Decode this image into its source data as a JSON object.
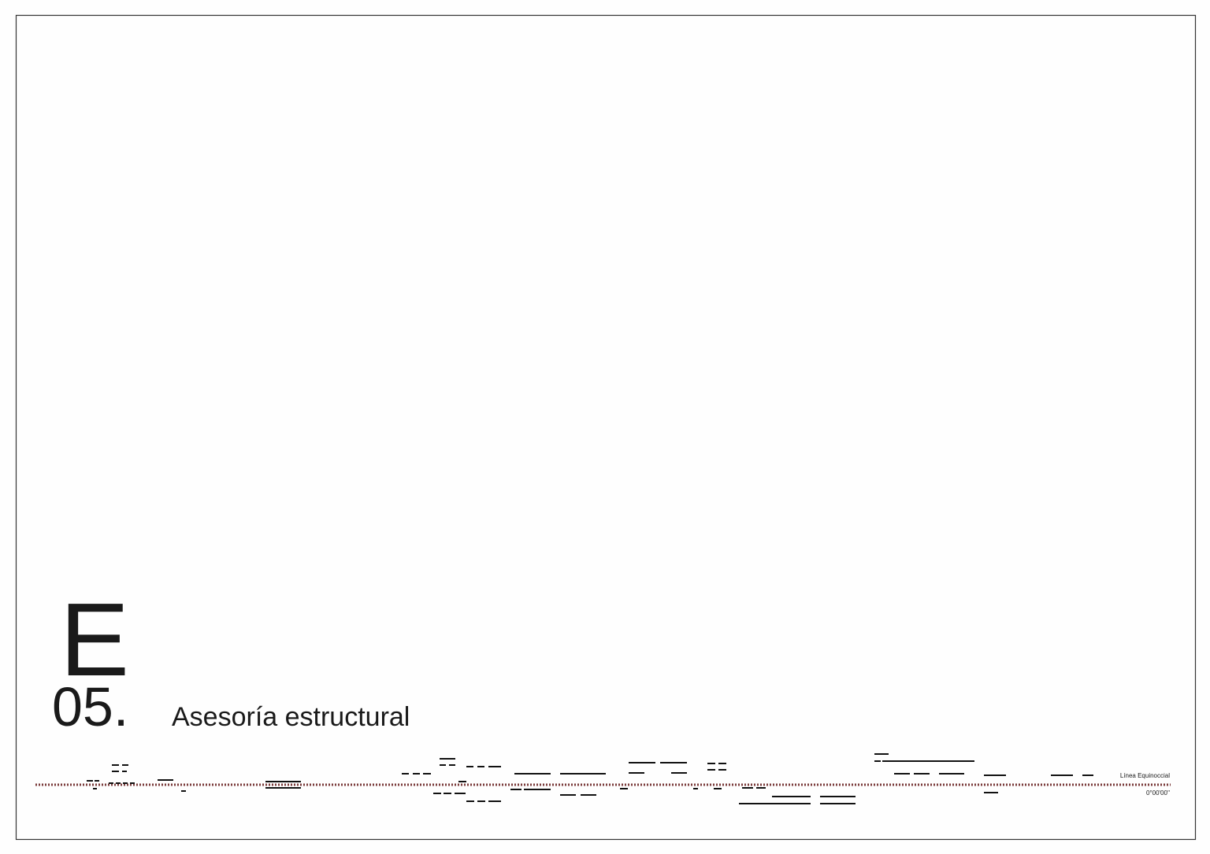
{
  "section": {
    "letter": "E",
    "number": "05.",
    "title": "Asesoría estructural"
  },
  "equator": {
    "label": "Línea Equinoccial",
    "coordinate": "0°00'00''"
  }
}
